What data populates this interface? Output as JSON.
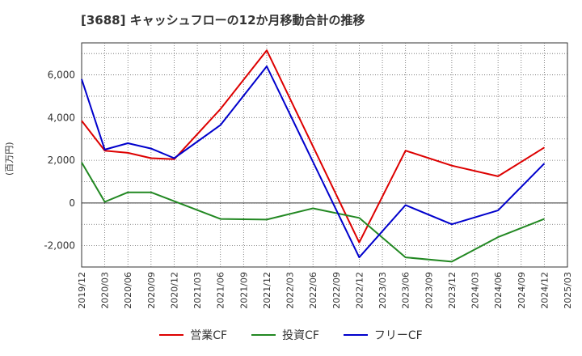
{
  "chart_data": {
    "type": "line",
    "title": "[3688]  キャッシュフローの12か月移動合計の推移",
    "ylabel": "(百万円)",
    "xlabel": "",
    "ylim": [
      -3000,
      7500
    ],
    "yticks": [
      -2000,
      0,
      2000,
      4000,
      6000
    ],
    "ytick_labels": [
      "-2,000",
      "0",
      "2,000",
      "4,000",
      "6,000"
    ],
    "x_ticks": [
      "2019/12",
      "2020/03",
      "2020/06",
      "2020/09",
      "2020/12",
      "2021/03",
      "2021/06",
      "2021/09",
      "2021/12",
      "2022/03",
      "2022/06",
      "2022/09",
      "2022/12",
      "2023/03",
      "2023/06",
      "2023/09",
      "2023/12",
      "2024/03",
      "2024/06",
      "2024/09",
      "2024/12",
      "2025/03"
    ],
    "grid": true,
    "legend_position": "bottom",
    "series": [
      {
        "name": "営業CF",
        "color": "#dd0000",
        "points": [
          {
            "x": "2019/12",
            "y": 3850
          },
          {
            "x": "2020/03",
            "y": 2450
          },
          {
            "x": "2020/06",
            "y": 2350
          },
          {
            "x": "2020/09",
            "y": 2100
          },
          {
            "x": "2020/12",
            "y": 2050
          },
          {
            "x": "2021/06",
            "y": 4400
          },
          {
            "x": "2021/12",
            "y": 7150
          },
          {
            "x": "2022/12",
            "y": -1850
          },
          {
            "x": "2023/06",
            "y": 2450
          },
          {
            "x": "2023/12",
            "y": 1750
          },
          {
            "x": "2024/06",
            "y": 1250
          },
          {
            "x": "2024/12",
            "y": 2600
          }
        ]
      },
      {
        "name": "投資CF",
        "color": "#228822",
        "points": [
          {
            "x": "2019/12",
            "y": 1900
          },
          {
            "x": "2020/03",
            "y": 50
          },
          {
            "x": "2020/06",
            "y": 500
          },
          {
            "x": "2020/09",
            "y": 500
          },
          {
            "x": "2021/06",
            "y": -750
          },
          {
            "x": "2021/12",
            "y": -780
          },
          {
            "x": "2022/06",
            "y": -250
          },
          {
            "x": "2022/12",
            "y": -700
          },
          {
            "x": "2023/06",
            "y": -2550
          },
          {
            "x": "2023/12",
            "y": -2750
          },
          {
            "x": "2024/06",
            "y": -1600
          },
          {
            "x": "2024/12",
            "y": -750
          }
        ]
      },
      {
        "name": "フリーCF",
        "color": "#0000cc",
        "points": [
          {
            "x": "2019/12",
            "y": 5800
          },
          {
            "x": "2020/03",
            "y": 2500
          },
          {
            "x": "2020/06",
            "y": 2800
          },
          {
            "x": "2020/09",
            "y": 2550
          },
          {
            "x": "2020/12",
            "y": 2100
          },
          {
            "x": "2021/06",
            "y": 3650
          },
          {
            "x": "2021/12",
            "y": 6400
          },
          {
            "x": "2022/12",
            "y": -2550
          },
          {
            "x": "2023/06",
            "y": -100
          },
          {
            "x": "2023/12",
            "y": -1000
          },
          {
            "x": "2024/06",
            "y": -350
          },
          {
            "x": "2024/12",
            "y": 1850
          }
        ]
      }
    ]
  }
}
